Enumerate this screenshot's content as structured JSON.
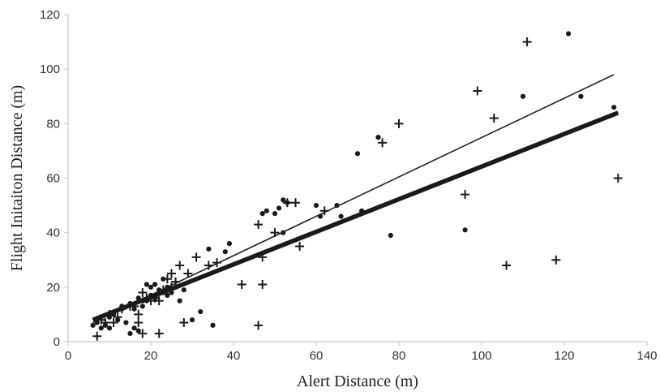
{
  "chart_data": {
    "type": "scatter",
    "title": "",
    "xlabel": "Alert Distance (m)",
    "ylabel": "Flight Initaiton Distance (m)",
    "xlim": [
      0,
      140
    ],
    "ylim": [
      0,
      120
    ],
    "x_ticks": [
      0,
      20,
      40,
      60,
      80,
      100,
      120,
      140
    ],
    "y_ticks": [
      0,
      20,
      40,
      60,
      80,
      100,
      120
    ],
    "grid": false,
    "colors": {
      "points": "#1a1a1a",
      "axis": "#d0d0d0",
      "text": "#333333"
    },
    "series": [
      {
        "marker": "dot",
        "points": [
          [
            6,
            6
          ],
          [
            7,
            7
          ],
          [
            8,
            5
          ],
          [
            9,
            6
          ],
          [
            10,
            9
          ],
          [
            10,
            5
          ],
          [
            11,
            10
          ],
          [
            12,
            8
          ],
          [
            13,
            12
          ],
          [
            14,
            7
          ],
          [
            15,
            3
          ],
          [
            15,
            14
          ],
          [
            16,
            12
          ],
          [
            17,
            16
          ],
          [
            18,
            13
          ],
          [
            19,
            15
          ],
          [
            20,
            17
          ],
          [
            20,
            20
          ],
          [
            21,
            16
          ],
          [
            22,
            19
          ],
          [
            23,
            23
          ],
          [
            23,
            18
          ],
          [
            24,
            20
          ],
          [
            25,
            18
          ],
          [
            26,
            20
          ],
          [
            27,
            15
          ],
          [
            28,
            19
          ],
          [
            30,
            8
          ],
          [
            32,
            11
          ],
          [
            34,
            34
          ],
          [
            35,
            6
          ],
          [
            38,
            33
          ],
          [
            39,
            36
          ],
          [
            47,
            47
          ],
          [
            48,
            48
          ],
          [
            50,
            47
          ],
          [
            51,
            49
          ],
          [
            52,
            52
          ],
          [
            53,
            51
          ],
          [
            52,
            40
          ],
          [
            60,
            50
          ],
          [
            61,
            46
          ],
          [
            65,
            50
          ],
          [
            66,
            46
          ],
          [
            70,
            69
          ],
          [
            71,
            48
          ],
          [
            75,
            75
          ],
          [
            78,
            39
          ],
          [
            96,
            41
          ],
          [
            110,
            90
          ],
          [
            121,
            113
          ],
          [
            124,
            90
          ],
          [
            132,
            86
          ],
          [
            17,
            4
          ],
          [
            16,
            5
          ],
          [
            18,
            15
          ],
          [
            13,
            13
          ],
          [
            24,
            17
          ],
          [
            19,
            21
          ],
          [
            21,
            21
          ]
        ]
      },
      {
        "marker": "plus",
        "points": [
          [
            7,
            2
          ],
          [
            8,
            8
          ],
          [
            9,
            7
          ],
          [
            10,
            10
          ],
          [
            11,
            7
          ],
          [
            12,
            9
          ],
          [
            13,
            12
          ],
          [
            15,
            13
          ],
          [
            16,
            13
          ],
          [
            17,
            10
          ],
          [
            17,
            7
          ],
          [
            18,
            3
          ],
          [
            18,
            18
          ],
          [
            19,
            16
          ],
          [
            20,
            15
          ],
          [
            21,
            16
          ],
          [
            22,
            15
          ],
          [
            22,
            3
          ],
          [
            23,
            19
          ],
          [
            24,
            23
          ],
          [
            25,
            25
          ],
          [
            25,
            20
          ],
          [
            26,
            22
          ],
          [
            27,
            28
          ],
          [
            28,
            7
          ],
          [
            29,
            25
          ],
          [
            31,
            31
          ],
          [
            34,
            28
          ],
          [
            36,
            29
          ],
          [
            42,
            21
          ],
          [
            46,
            6
          ],
          [
            46,
            43
          ],
          [
            47,
            31
          ],
          [
            47,
            21
          ],
          [
            50,
            40
          ],
          [
            53,
            51
          ],
          [
            55,
            51
          ],
          [
            56,
            35
          ],
          [
            62,
            48
          ],
          [
            76,
            73
          ],
          [
            80,
            80
          ],
          [
            96,
            54
          ],
          [
            99,
            92
          ],
          [
            103,
            82
          ],
          [
            106,
            28
          ],
          [
            111,
            110
          ],
          [
            118,
            30
          ],
          [
            133,
            60
          ]
        ]
      }
    ],
    "trendlines": [
      {
        "style": "thin",
        "from": [
          6,
          7
        ],
        "to": [
          132,
          98
        ]
      },
      {
        "style": "thick",
        "from": [
          6,
          8
        ],
        "to": [
          133,
          84
        ]
      }
    ]
  }
}
